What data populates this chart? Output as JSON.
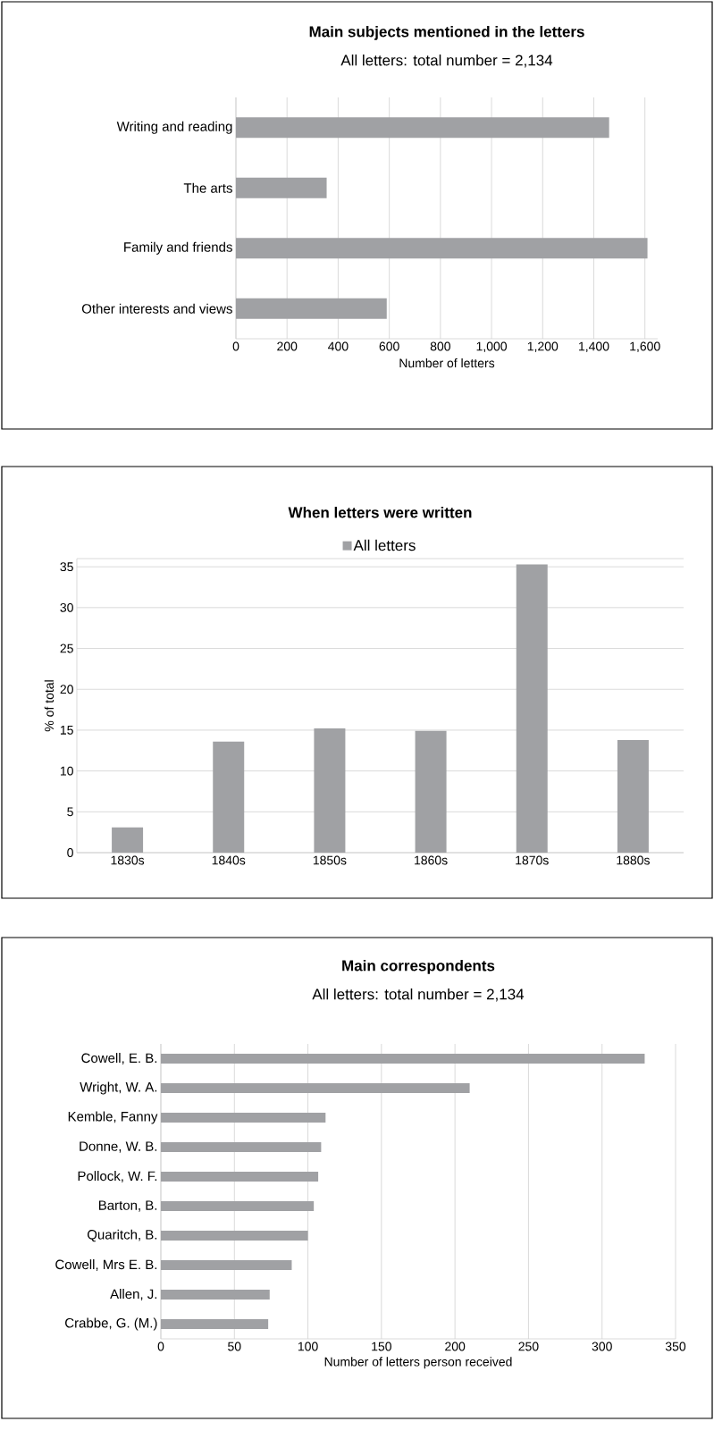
{
  "chart_data": [
    {
      "type": "bar",
      "orientation": "horizontal",
      "title": "Main subjects mentioned in the letters",
      "subtitle": "All letters:  total number = 2,134",
      "xlabel": "Number of letters",
      "categories": [
        "Writing and reading",
        "The arts",
        "Family and friends",
        "Other interests and views"
      ],
      "values": [
        1460,
        355,
        1610,
        590
      ],
      "color": "#a0a1a4",
      "xlim": [
        0,
        1650
      ],
      "xticks": [
        0,
        200,
        400,
        600,
        800,
        {
          "value": 1000,
          "label": "1,000"
        },
        {
          "value": 1200,
          "label": "1,200"
        },
        {
          "value": 1400,
          "label": "1,400"
        },
        {
          "value": 1600,
          "label": "1,600"
        }
      ],
      "grid": "x"
    },
    {
      "type": "bar",
      "title": "When letters were written",
      "ylabel": "% of total",
      "categories": [
        "1830s",
        "1840s",
        "1850s",
        "1860s",
        "1870s",
        "1880s"
      ],
      "series": [
        {
          "name": "All letters",
          "color": "#a0a1a4",
          "values": [
            3.1,
            13.6,
            15.2,
            14.9,
            35.3,
            13.8
          ]
        }
      ],
      "ylim": [
        0,
        36
      ],
      "yticks": [
        0,
        5,
        10,
        15,
        20,
        25,
        30,
        35
      ],
      "grid": "y",
      "legend": "top"
    },
    {
      "type": "bar",
      "orientation": "horizontal",
      "title": "Main correspondents",
      "subtitle": "All letters: total number = 2,134",
      "xlabel": "Number of letters person received",
      "categories": [
        "Cowell, E. B.",
        "Wright, W. A.",
        "Kemble, Fanny",
        "Donne, W. B.",
        "Pollock, W. F.",
        "Barton, B.",
        "Quaritch, B.",
        "Cowell, Mrs E. B.",
        "Allen, J.",
        "Crabbe, G. (M.)"
      ],
      "values": [
        329,
        210,
        112,
        109,
        107,
        104,
        100,
        89,
        74,
        73
      ],
      "color": "#a0a1a4",
      "xlim": [
        0,
        350
      ],
      "xticks": [
        0,
        50,
        100,
        150,
        200,
        250,
        300,
        350
      ],
      "grid": "x"
    }
  ]
}
